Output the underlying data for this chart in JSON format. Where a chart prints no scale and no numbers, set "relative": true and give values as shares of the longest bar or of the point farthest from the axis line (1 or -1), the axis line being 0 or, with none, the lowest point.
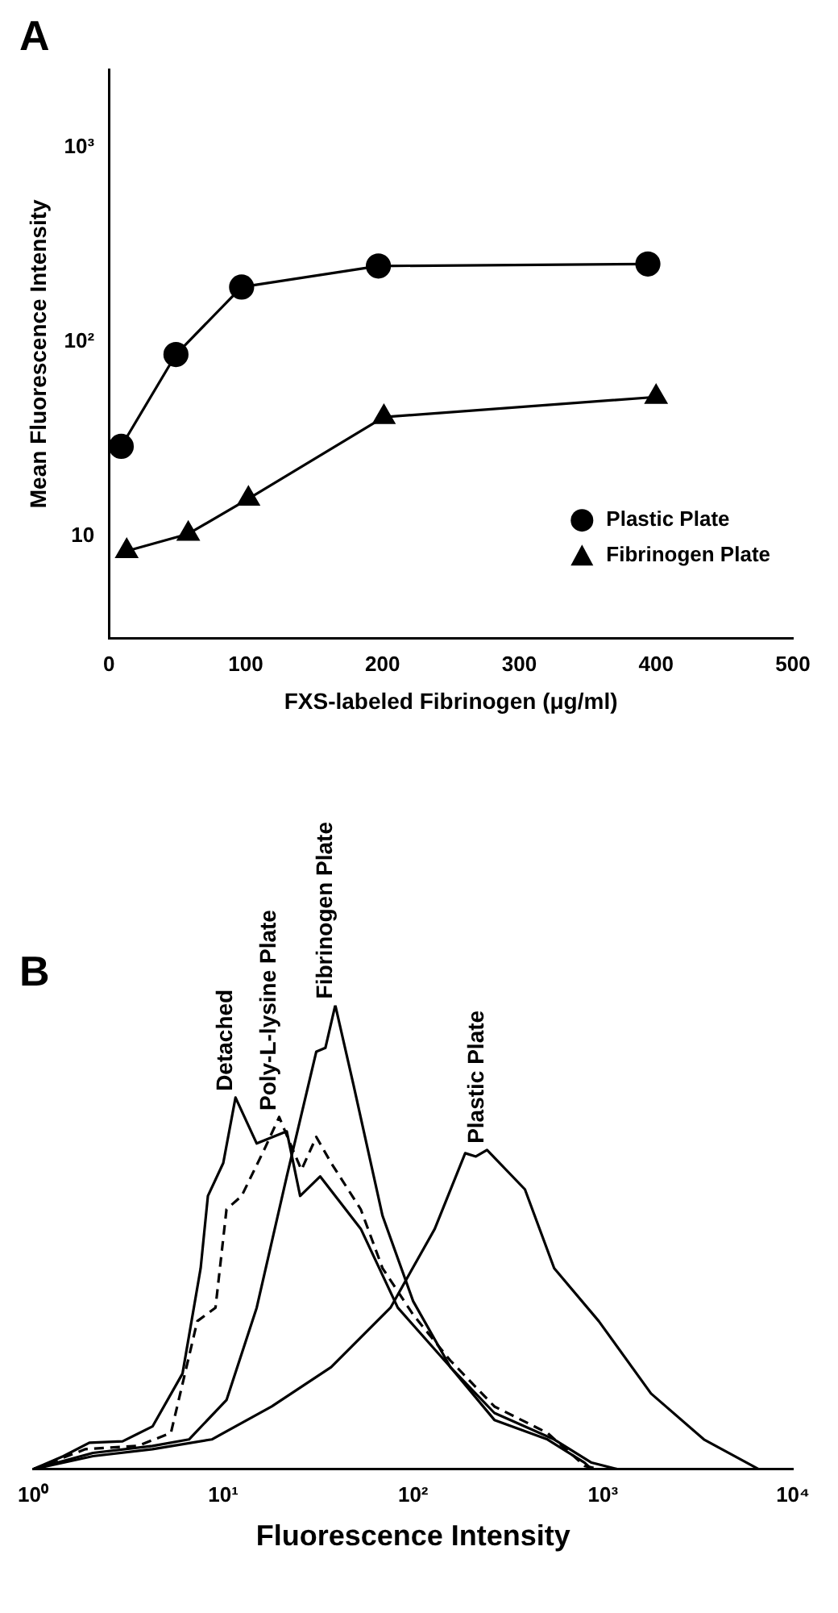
{
  "chart_data": [
    {
      "type": "line",
      "title": "A",
      "xlabel": "FXS-labeled Fibrinogen (μg/ml)",
      "ylabel": "Mean Fluorescence Intensity",
      "log": "y",
      "xlim": [
        0,
        500
      ],
      "xticks": [
        0,
        100,
        200,
        300,
        400,
        500
      ],
      "ylim": [
        3,
        2500
      ],
      "yticks": [
        10,
        {
          "value": 100,
          "label": "10²"
        },
        {
          "value": 1000,
          "label": "10³"
        }
      ],
      "legend": "bottom right",
      "grid": false,
      "series": [
        {
          "name": "Plastic Plate",
          "color": "#000000",
          "marker": "circle",
          "x": [
            9,
            49,
            97,
            197,
            394
          ],
          "values": [
            29,
            86,
            191,
            245,
            251
          ]
        },
        {
          "name": "Fibrinogen Plate",
          "color": "#000000",
          "marker": "triangle",
          "x": [
            13,
            58,
            102,
            201,
            400
          ],
          "values": [
            8.4,
            10.3,
            15.6,
            41,
            52
          ]
        }
      ]
    },
    {
      "type": "line",
      "title": "B",
      "xlabel": "Fluorescence Intensity",
      "log": "x",
      "relative": true,
      "xlim": [
        1,
        10000
      ],
      "xticks": [
        {
          "value": 1,
          "label": "10⁰"
        },
        {
          "value": 10,
          "label": "10¹"
        },
        {
          "value": 100,
          "label": "10²"
        },
        {
          "value": 1000,
          "label": "10³"
        },
        {
          "value": 10000,
          "label": "10⁴"
        }
      ],
      "legend": false,
      "grid": false,
      "marker": "none",
      "series": [
        {
          "name": "Detached",
          "color": "#000000",
          "line_style": "solid",
          "x": [
            1,
            1.44,
            1.97,
            2.95,
            4.24,
            6.1,
            7.6,
            8.3,
            10,
            11.6,
            15,
            21.6,
            25.4,
            32.4,
            53,
            83,
            157,
            268,
            510,
            800,
            870
          ],
          "values": [
            0,
            0.028,
            0.057,
            0.06,
            0.092,
            0.206,
            0.433,
            0.589,
            0.66,
            0.801,
            0.702,
            0.728,
            0.589,
            0.631,
            0.518,
            0.348,
            0.22,
            0.106,
            0.064,
            0.014,
            0
          ]
        },
        {
          "name": "Poly-L-lysine Plate",
          "color": "#000000",
          "line_style": "dashed",
          "x": [
            1,
            1.88,
            3.54,
            5.3,
            7.3,
            9.1,
            10.4,
            12.5,
            16.4,
            19.7,
            22.5,
            25.8,
            30.9,
            37,
            53,
            69,
            100,
            157,
            268,
            510,
            800,
            950
          ],
          "values": [
            0,
            0.043,
            0.05,
            0.078,
            0.319,
            0.348,
            0.56,
            0.589,
            0.688,
            0.759,
            0.702,
            0.645,
            0.716,
            0.66,
            0.56,
            0.433,
            0.333,
            0.234,
            0.135,
            0.078,
            0.007,
            0
          ]
        },
        {
          "name": "Fibrinogen Plate",
          "color": "#000000",
          "line_style": "solid",
          "x": [
            1,
            2.06,
            4.24,
            6.6,
            10.4,
            15,
            21.6,
            30.9,
            34.5,
            38.9,
            48.4,
            69,
            100,
            157,
            268,
            553,
            870,
            1190
          ],
          "values": [
            0,
            0.035,
            0.05,
            0.064,
            0.149,
            0.348,
            0.631,
            0.9,
            0.908,
            1,
            0.83,
            0.546,
            0.362,
            0.22,
            0.121,
            0.064,
            0.014,
            0
          ]
        },
        {
          "name": "Plastic Plate",
          "color": "#000000",
          "line_style": "solid",
          "x": [
            1,
            2.06,
            4.24,
            8.7,
            18,
            37,
            76,
            130,
            188,
            214,
            245,
            388,
            553,
            950,
            1790,
            3400,
            6600
          ],
          "values": [
            0,
            0.028,
            0.043,
            0.064,
            0.135,
            0.22,
            0.348,
            0.518,
            0.681,
            0.674,
            0.688,
            0.603,
            0.433,
            0.319,
            0.163,
            0.064,
            0
          ]
        }
      ]
    }
  ]
}
